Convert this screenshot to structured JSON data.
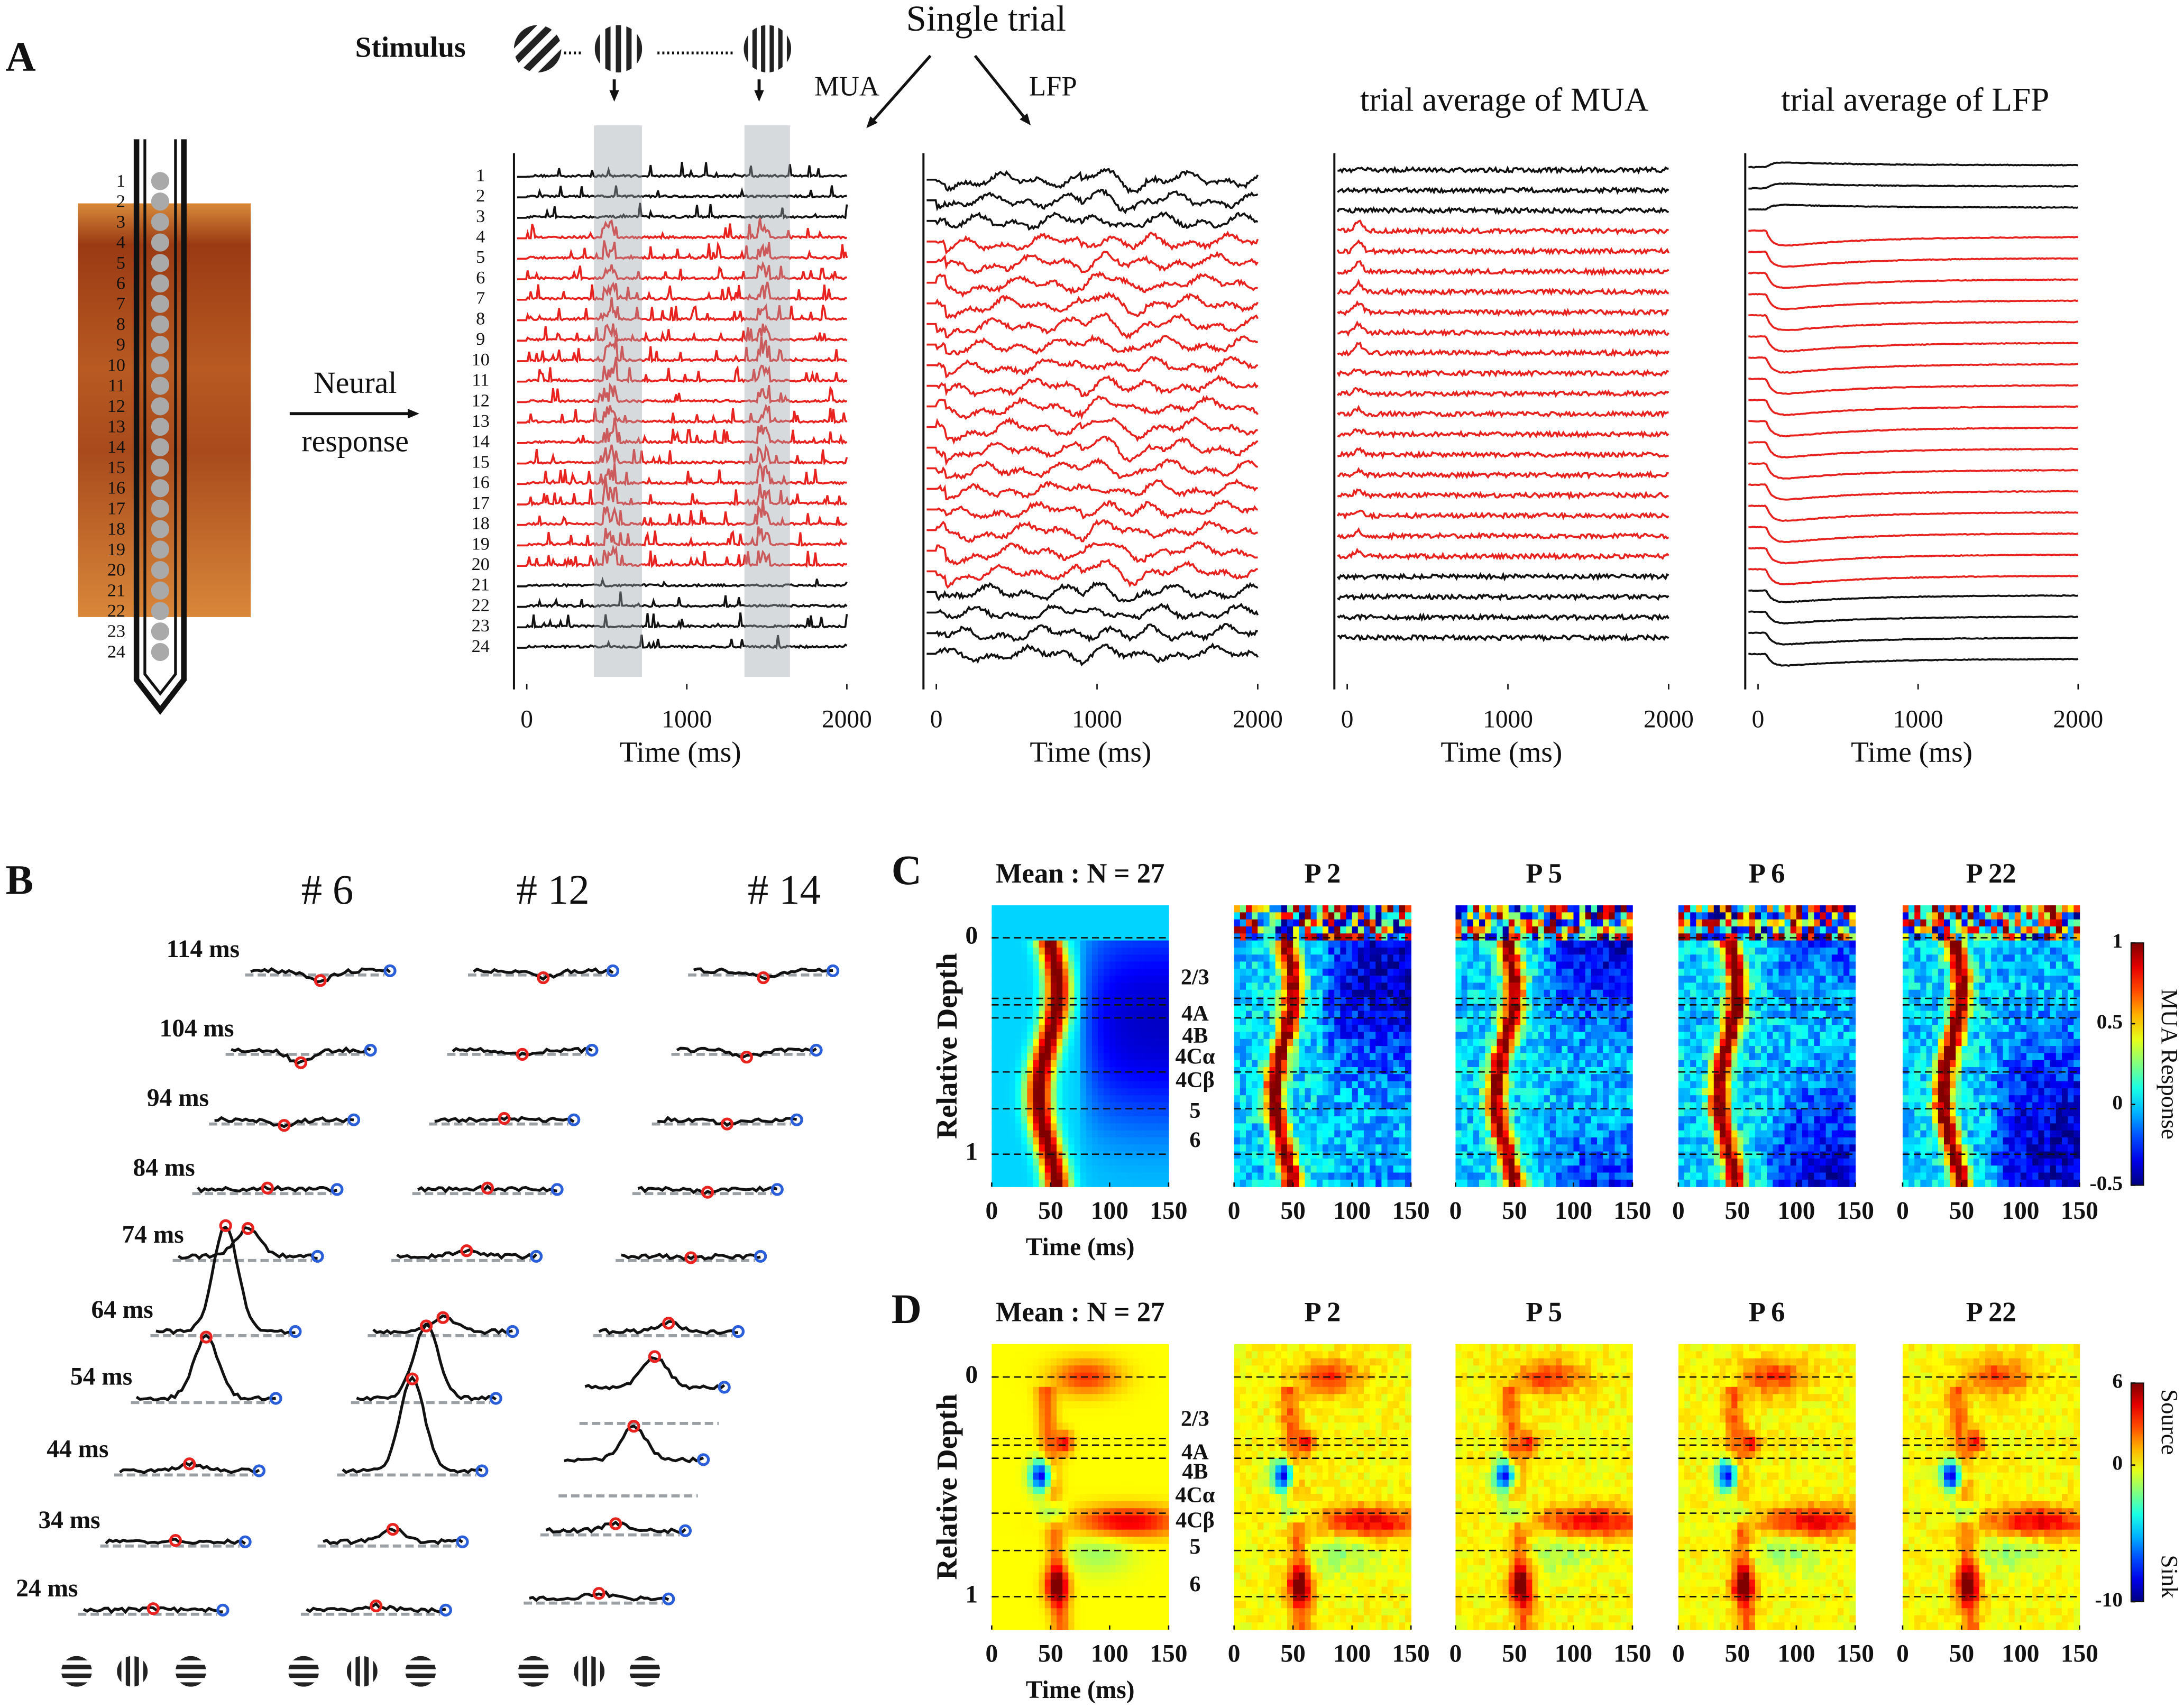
{
  "panel_a": {
    "label": "A",
    "stimulus": "Stimulus",
    "single_trial": "Single trial",
    "mua": "MUA",
    "lfp": "LFP",
    "neural": "Neural",
    "response": "response",
    "channels": [
      1,
      2,
      3,
      4,
      5,
      6,
      7,
      8,
      9,
      10,
      11,
      12,
      13,
      14,
      15,
      16,
      17,
      18,
      19,
      20,
      21,
      22,
      23,
      24
    ],
    "avg_titles": [
      "trial average of MUA",
      "trial average of LFP"
    ],
    "x_label": "Time (ms)",
    "xlim": [
      -80,
      2000
    ],
    "xticks": [
      0,
      1000,
      2000
    ]
  },
  "panel_b": {
    "label": "B",
    "columns": [
      "# 6",
      "# 12",
      "# 14"
    ],
    "latencies": [
      "114 ms",
      "104 ms",
      "94 ms",
      "84 ms",
      "74 ms",
      "64 ms",
      "54 ms",
      "44 ms",
      "34 ms",
      "24 ms"
    ]
  },
  "panel_c": {
    "label": "C",
    "titles": [
      "Mean : N = 27",
      "P 2",
      "P 5",
      "P 6",
      "P 22"
    ],
    "y_label": "Relative Depth",
    "ylim": [
      -0.15,
      1.15
    ],
    "yticks": [
      0,
      1
    ],
    "xlim": [
      0,
      150
    ],
    "xticks": [
      0,
      50,
      100,
      150
    ],
    "x_label": "Time (ms)",
    "layers": [
      "2/3",
      "4A",
      "4B",
      "4Cα",
      "4Cβ",
      "5",
      "6"
    ],
    "colorbar": {
      "label": "MUA Response",
      "lim": [
        -0.5,
        1
      ],
      "ticks": [
        1,
        0.5,
        0,
        -0.5
      ]
    }
  },
  "panel_d": {
    "label": "D",
    "titles": [
      "Mean : N = 27",
      "P 2",
      "P 5",
      "P 6",
      "P 22"
    ],
    "y_label": "Relative Depth",
    "ylim": [
      -0.15,
      1.15
    ],
    "yticks": [
      0,
      1
    ],
    "xlim": [
      0,
      150
    ],
    "xticks": [
      0,
      50,
      100,
      150
    ],
    "x_label": "Time (ms)",
    "layers": [
      "2/3",
      "4A",
      "4B",
      "4Cα",
      "4Cβ",
      "5",
      "6"
    ],
    "colorbar": {
      "source": "Source",
      "sink": "Sink",
      "lim": [
        -10,
        6
      ],
      "ticks": [
        6,
        0,
        -10
      ]
    }
  }
}
